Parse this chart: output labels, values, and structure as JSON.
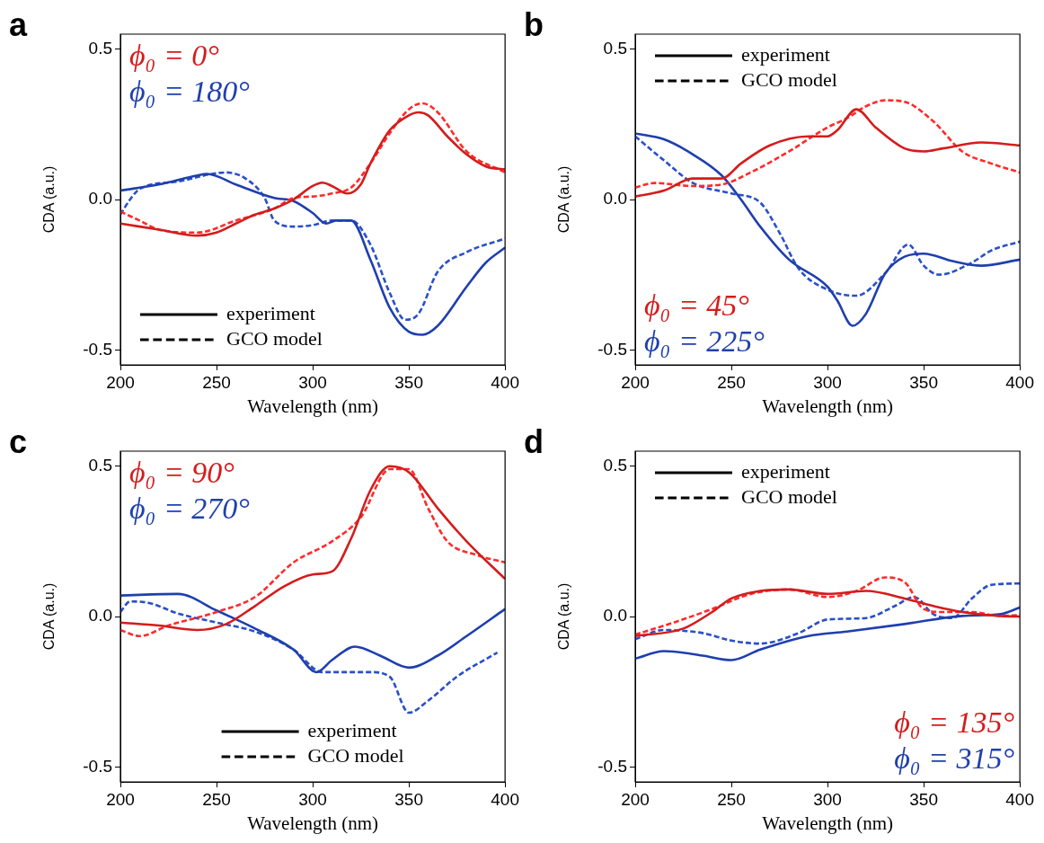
{
  "chart_data": [
    {
      "type": "line",
      "title": "a",
      "xlabel": "Wavelength (nm)",
      "ylabel": "CDA (a.u.)",
      "xlim": [
        200,
        400
      ],
      "xticks": [
        200,
        250,
        300,
        350,
        400
      ],
      "ylim": [
        -0.55,
        0.55
      ],
      "yticks": [
        {
          "value": -0.5,
          "label": "-0.5"
        },
        {
          "value": 0,
          "label": "0.0"
        },
        {
          "value": 0.5,
          "label": "0.5"
        }
      ],
      "grid": false,
      "legend": "top left",
      "annotations": [
        "experiment",
        "GCO model"
      ],
      "series": [
        {
          "name": "ϕ₀ = 0°",
          "color": "#d41c1c",
          "line_style": "solid",
          "x": [
            200,
            220,
            240,
            250,
            260,
            270,
            280,
            290,
            300,
            305,
            310,
            318,
            325,
            330,
            340,
            350,
            355,
            360,
            370,
            380,
            390,
            400
          ],
          "values": [
            -0.08,
            -0.1,
            -0.12,
            -0.11,
            -0.08,
            -0.05,
            -0.03,
            0,
            0.045,
            0.056,
            0.045,
            0.02,
            0.05,
            0.12,
            0.23,
            0.28,
            0.29,
            0.28,
            0.21,
            0.15,
            0.11,
            0.1
          ]
        },
        {
          "color": "#ff2a2a",
          "line_style": "dashed",
          "x": [
            200,
            210,
            220,
            240,
            260,
            280,
            290,
            300,
            310,
            320,
            330,
            340,
            350,
            357,
            365,
            380,
            400
          ],
          "values": [
            -0.04,
            -0.07,
            -0.1,
            -0.11,
            -0.07,
            -0.03,
            0.005,
            0.01,
            0.02,
            0.04,
            0.12,
            0.22,
            0.3,
            0.32,
            0.29,
            0.16,
            0.09
          ]
        },
        {
          "name": "ϕ₀ = 180°",
          "color": "#1f3fae",
          "line_style": "solid",
          "x": [
            200,
            220,
            240,
            245,
            260,
            280,
            290,
            300,
            307,
            312,
            320,
            330,
            340,
            350,
            357,
            365,
            380,
            390,
            400
          ],
          "values": [
            0.03,
            0.05,
            0.08,
            0.085,
            0.05,
            0.005,
            -0.005,
            -0.045,
            -0.08,
            -0.07,
            -0.07,
            -0.2,
            -0.36,
            -0.44,
            -0.45,
            -0.42,
            -0.29,
            -0.21,
            -0.16
          ]
        },
        {
          "color": "#2a4fc8",
          "line_style": "dashed",
          "x": [
            200,
            205,
            210,
            230,
            255,
            265,
            275,
            280,
            290,
            300,
            310,
            320,
            330,
            340,
            348,
            355,
            365,
            380,
            400
          ],
          "values": [
            -0.05,
            0,
            0.035,
            0.06,
            0.09,
            0.07,
            0.005,
            -0.07,
            -0.09,
            -0.085,
            -0.07,
            -0.07,
            -0.15,
            -0.31,
            -0.4,
            -0.38,
            -0.24,
            -0.175,
            -0.13
          ]
        }
      ]
    },
    {
      "type": "line",
      "title": "b",
      "xlabel": "Wavelength (nm)",
      "ylabel": "CDA (a.u.)",
      "xlim": [
        200,
        400
      ],
      "xticks": [
        200,
        250,
        300,
        350,
        400
      ],
      "ylim": [
        -0.55,
        0.55
      ],
      "yticks": [
        {
          "value": -0.5,
          "label": "-0.5"
        },
        {
          "value": 0,
          "label": "0.0"
        },
        {
          "value": 0.5,
          "label": "0.5"
        }
      ],
      "grid": false,
      "legend": "bottom left",
      "annotations": [
        "experiment",
        "GCO model"
      ],
      "series": [
        {
          "name": "ϕ₀ = 45°",
          "color": "#d41c1c",
          "line_style": "solid",
          "x": [
            200,
            215,
            230,
            245,
            255,
            270,
            290,
            300,
            305,
            315,
            325,
            340,
            350,
            360,
            380,
            400
          ],
          "values": [
            0.01,
            0.03,
            0.07,
            0.07,
            0.12,
            0.18,
            0.21,
            0.21,
            0.23,
            0.3,
            0.24,
            0.17,
            0.16,
            0.17,
            0.19,
            0.18
          ]
        },
        {
          "color": "#ff2a2a",
          "line_style": "dashed",
          "x": [
            200,
            210,
            230,
            245,
            260,
            280,
            300,
            310,
            320,
            330,
            340,
            355,
            370,
            385,
            400
          ],
          "values": [
            0.04,
            0.055,
            0.045,
            0.05,
            0.09,
            0.16,
            0.24,
            0.27,
            0.31,
            0.33,
            0.325,
            0.26,
            0.16,
            0.12,
            0.09
          ]
        },
        {
          "name": "ϕ₀ = 225°",
          "color": "#1f3fae",
          "line_style": "solid",
          "x": [
            200,
            215,
            230,
            245,
            255,
            265,
            280,
            300,
            305,
            313,
            320,
            330,
            340,
            350,
            365,
            380,
            400
          ],
          "values": [
            0.22,
            0.2,
            0.15,
            0.08,
            0,
            -0.09,
            -0.2,
            -0.29,
            -0.335,
            -0.42,
            -0.38,
            -0.245,
            -0.19,
            -0.18,
            -0.205,
            -0.22,
            -0.2
          ]
        },
        {
          "color": "#2a4fc8",
          "line_style": "dashed",
          "x": [
            200,
            215,
            230,
            250,
            265,
            275,
            285,
            300,
            315,
            330,
            342,
            350,
            358,
            375,
            385,
            400
          ],
          "values": [
            0.21,
            0.13,
            0.055,
            0.02,
            -0.01,
            -0.11,
            -0.23,
            -0.3,
            -0.32,
            -0.245,
            -0.15,
            -0.22,
            -0.25,
            -0.21,
            -0.17,
            -0.14
          ]
        }
      ]
    },
    {
      "type": "line",
      "title": "c",
      "xlabel": "Wavelength (nm)",
      "ylabel": "CDA (a.u.)",
      "xlim": [
        200,
        400
      ],
      "xticks": [
        200,
        250,
        300,
        350,
        400
      ],
      "ylim": [
        -0.55,
        0.55
      ],
      "yticks": [
        {
          "value": -0.5,
          "label": "-0.5"
        },
        {
          "value": 0,
          "label": "0.0"
        },
        {
          "value": 0.5,
          "label": "0.5"
        }
      ],
      "grid": false,
      "legend": "top left",
      "annotations": [
        "experiment",
        "GCO model"
      ],
      "series": [
        {
          "name": "ϕ₀ = 90°",
          "color": "#d41c1c",
          "line_style": "solid",
          "x": [
            200,
            220,
            240,
            255,
            270,
            285,
            300,
            310,
            320,
            330,
            340,
            350,
            365,
            380,
            400
          ],
          "values": [
            -0.02,
            -0.03,
            -0.045,
            -0.025,
            0.035,
            0.1,
            0.14,
            0.15,
            0.26,
            0.42,
            0.5,
            0.48,
            0.36,
            0.25,
            0.125
          ]
        },
        {
          "color": "#ff2a2a",
          "line_style": "dashed",
          "x": [
            200,
            210,
            225,
            250,
            270,
            290,
            310,
            325,
            340,
            350,
            360,
            370,
            385,
            400
          ],
          "values": [
            -0.045,
            -0.065,
            -0.03,
            0.015,
            0.065,
            0.18,
            0.25,
            0.33,
            0.49,
            0.49,
            0.36,
            0.25,
            0.205,
            0.18
          ]
        },
        {
          "name": "ϕ₀ = 270°",
          "color": "#1f3fae",
          "line_style": "solid",
          "x": [
            200,
            230,
            250,
            270,
            290,
            302,
            310,
            322,
            335,
            350,
            365,
            380,
            400
          ],
          "values": [
            0.07,
            0.075,
            0.02,
            -0.04,
            -0.11,
            -0.185,
            -0.145,
            -0.1,
            -0.13,
            -0.17,
            -0.13,
            -0.065,
            0.025
          ]
        },
        {
          "color": "#2a4fc8",
          "line_style": "dashed",
          "x": [
            200,
            205,
            215,
            230,
            250,
            270,
            290,
            305,
            330,
            340,
            350,
            360,
            375,
            396
          ],
          "values": [
            0.015,
            0.05,
            0.045,
            0.01,
            -0.02,
            -0.05,
            -0.11,
            -0.185,
            -0.185,
            -0.2,
            -0.32,
            -0.28,
            -0.2,
            -0.12
          ]
        }
      ]
    },
    {
      "type": "line",
      "title": "d",
      "xlabel": "Wavelength (nm)",
      "ylabel": "CDA (a.u.)",
      "xlim": [
        200,
        400
      ],
      "xticks": [
        200,
        250,
        300,
        350,
        400
      ],
      "ylim": [
        -0.55,
        0.55
      ],
      "yticks": [
        {
          "value": -0.5,
          "label": "-0.5"
        },
        {
          "value": 0,
          "label": "0.0"
        },
        {
          "value": 0.5,
          "label": "0.5"
        }
      ],
      "grid": false,
      "legend": "bottom right",
      "annotations": [
        "experiment",
        "GCO model"
      ],
      "series": [
        {
          "name": "ϕ₀ = 135°",
          "color": "#d41c1c",
          "line_style": "solid",
          "x": [
            200,
            225,
            240,
            250,
            265,
            280,
            300,
            320,
            340,
            355,
            370,
            390,
            400
          ],
          "values": [
            -0.065,
            -0.04,
            0.015,
            0.06,
            0.085,
            0.09,
            0.075,
            0.085,
            0.06,
            0.035,
            0.015,
            0.002,
            0
          ]
        },
        {
          "color": "#ff2a2a",
          "line_style": "dashed",
          "x": [
            200,
            220,
            240,
            260,
            280,
            300,
            315,
            330,
            340,
            350,
            360,
            375,
            390,
            400
          ],
          "values": [
            -0.06,
            -0.02,
            0.025,
            0.075,
            0.09,
            0.065,
            0.085,
            0.13,
            0.115,
            0.025,
            0.015,
            0.015,
            0.002,
            0.005
          ]
        },
        {
          "name": "ϕ₀ = 315°",
          "color": "#1f3fae",
          "line_style": "solid",
          "x": [
            200,
            215,
            235,
            250,
            265,
            290,
            310,
            340,
            370,
            390,
            400
          ],
          "values": [
            -0.14,
            -0.115,
            -0.13,
            -0.145,
            -0.11,
            -0.065,
            -0.05,
            -0.025,
            0.002,
            0.008,
            0.03
          ]
        },
        {
          "color": "#2a4fc8",
          "line_style": "dashed",
          "x": [
            200,
            215,
            235,
            250,
            265,
            285,
            300,
            320,
            335,
            345,
            355,
            365,
            375,
            385,
            400
          ],
          "values": [
            -0.075,
            -0.045,
            -0.055,
            -0.08,
            -0.09,
            -0.055,
            -0.01,
            -0.005,
            0.035,
            0.065,
            0.008,
            -0.005,
            0.06,
            0.105,
            0.11
          ]
        }
      ]
    }
  ]
}
